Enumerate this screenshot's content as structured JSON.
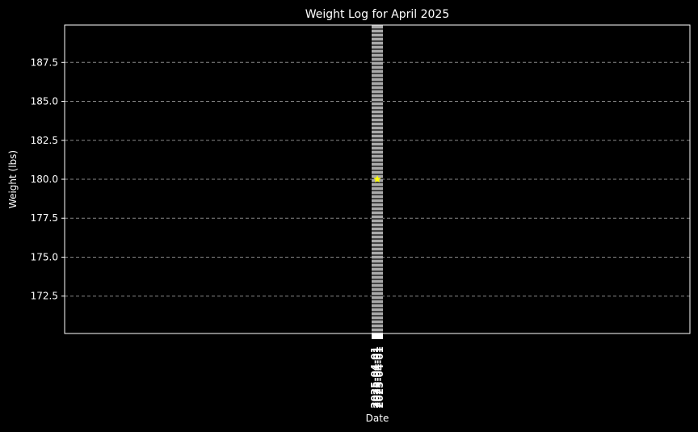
{
  "chart_data": {
    "type": "line",
    "title": "Weight Log for April 2025",
    "xlabel": "Date",
    "ylabel": "Weight (lbs)",
    "x": [
      "2025-04-01"
    ],
    "series": [
      {
        "values": [
          180.0
        ],
        "color": "#ffff00",
        "marker": "star"
      }
    ],
    "ylim": [
      170.1,
      189.9
    ],
    "yticks": [
      172.5,
      175.0,
      177.5,
      180.0,
      182.5,
      185.0,
      187.5
    ],
    "grid": "y",
    "background": "#000000",
    "grid_color": "#888888",
    "vertical_band_color": "#aaaaaa"
  }
}
